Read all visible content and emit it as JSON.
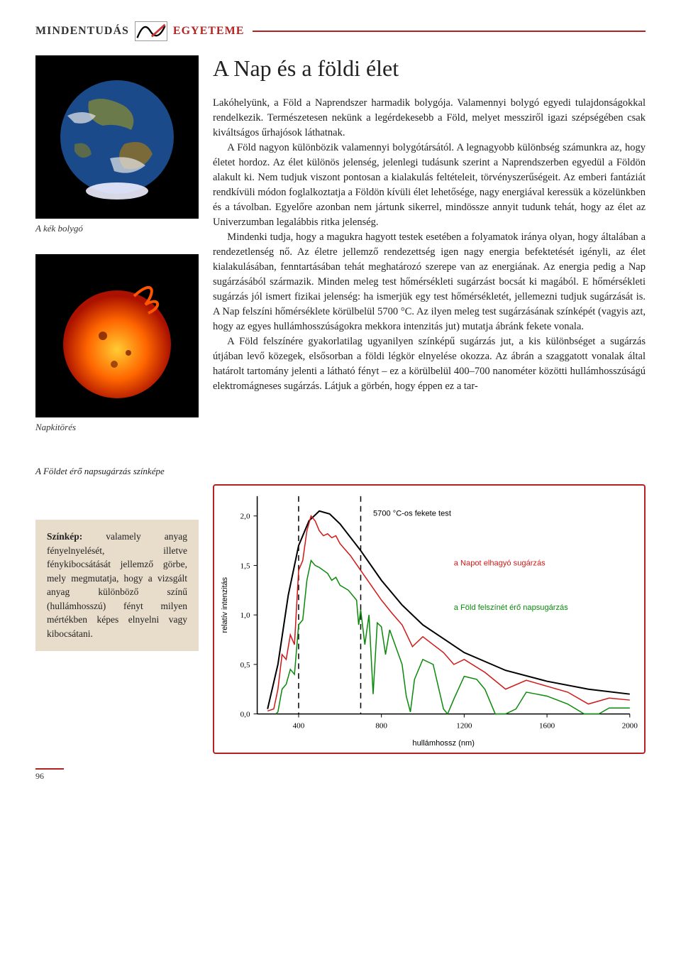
{
  "header": {
    "left": "Mindentudás",
    "right": "Egyeteme"
  },
  "title": "A Nap és a földi élet",
  "figures": [
    {
      "caption": "A kék bolygó",
      "kind": "earth"
    },
    {
      "caption": "Napkitörés",
      "kind": "sun"
    }
  ],
  "paragraphs": [
    "Lakóhelyünk, a Föld a Naprendszer harmadik bolygója. Valamennyi bolygó egyedi tulajdonságokkal rendelkezik. Természetesen nekünk a legérdekesebb a Föld, melyet messziről igazi szépségében csak kiváltságos űrhajósok láthatnak.",
    "A Föld nagyon különbözik valamennyi bolygótársától. A legnagyobb különbség számunkra az, hogy életet hordoz. Az élet különös jelenség, jelenlegi tudásunk szerint a Naprendszerben egyedül a Földön alakult ki. Nem tudjuk viszont pontosan a kialakulás feltételeit, törvényszerűségeit. Az emberi fantáziát rendkívüli módon foglalkoztatja a Földön kívüli élet lehetősége, nagy energiával keressük a közelünkben és a távolban. Egyelőre azonban nem jártunk sikerrel, mindössze annyit tudunk tehát, hogy az élet az Univerzumban legalábbis ritka jelenség.",
    "Mindenki tudja, hogy a magukra hagyott testek esetében a folyamatok iránya olyan, hogy általában a rendezetlenség nő. Az életre jellemző rendezettség igen nagy energia befektetését igényli, az élet kialakulásában, fenntartásában tehát meghatározó szerepe van az energiának. Az energia pedig a Nap sugárzásából származik. Minden meleg test hőmérsékleti sugárzást bocsát ki magából. E hőmérsékleti sugárzás jól ismert fizikai jelenség: ha ismerjük egy test hőmérsékletét, jellemezni tudjuk sugárzását is. A Nap felszíni hőmérséklete körülbelül 5700 °C. Az ilyen meleg test sugárzásának színképét (vagyis azt, hogy az egyes hullámhosszúságokra mekkora intenzitás jut) mutatja ábránk fekete vonala.",
    "A Föld felszínére gyakorlatilag ugyanilyen színképű sugárzás jut, a kis különbséget a sugárzás útjában levő közegek, elsősorban a földi légkör elnyelése okozza. Az ábrán a szaggatott vonalak által határolt tartomány jelenti a látható fényt – ez a körülbelül 400–700 nanométer közötti hullámhosszúságú elektromágneses sugárzás. Látjuk a görbén, hogy éppen ez a tar-"
  ],
  "chart_caption": "A Földet érő napsugárzás színképe",
  "definition": {
    "term": "Színkép:",
    "text": "valamely anyag fényelnyelését, illetve fénykibocsátását jellemző görbe, mely megmutatja, hogy a vizsgált anyag különböző színű (hullámhosszú) fényt milyen mértékben képes elnyelni vagy kibocsátani."
  },
  "chart": {
    "type": "line",
    "xlabel": "hullámhossz (nm)",
    "ylabel": "relatív intenzitás",
    "xlim": [
      200,
      2000
    ],
    "ylim": [
      0,
      2.2
    ],
    "xticks": [
      400,
      800,
      1200,
      1600,
      2000
    ],
    "yticks": [
      0.0,
      0.5,
      1.0,
      1.5,
      2.0
    ],
    "ytick_labels": [
      "0,0",
      "0,5",
      "1,0",
      "1,5",
      "2,0"
    ],
    "visible_band": [
      400,
      700
    ],
    "background_color": "#ffffff",
    "axis_color": "#000000",
    "dash_color": "#000000",
    "label_fontsize": 11,
    "tick_fontsize": 11,
    "series": [
      {
        "name": "5700 °C-os fekete test",
        "color": "#000000",
        "linewidth": 2,
        "points": [
          [
            250,
            0.05
          ],
          [
            300,
            0.5
          ],
          [
            350,
            1.2
          ],
          [
            400,
            1.7
          ],
          [
            450,
            1.95
          ],
          [
            500,
            2.05
          ],
          [
            550,
            2.02
          ],
          [
            600,
            1.92
          ],
          [
            700,
            1.65
          ],
          [
            800,
            1.35
          ],
          [
            900,
            1.1
          ],
          [
            1000,
            0.9
          ],
          [
            1200,
            0.62
          ],
          [
            1400,
            0.44
          ],
          [
            1600,
            0.33
          ],
          [
            1800,
            0.25
          ],
          [
            2000,
            0.2
          ]
        ]
      },
      {
        "name": "a Napot elhagyó sugárzás",
        "color": "#d01818",
        "linewidth": 1.5,
        "points": [
          [
            250,
            0.03
          ],
          [
            280,
            0.05
          ],
          [
            300,
            0.25
          ],
          [
            320,
            0.6
          ],
          [
            340,
            0.55
          ],
          [
            360,
            0.8
          ],
          [
            380,
            0.7
          ],
          [
            400,
            1.45
          ],
          [
            420,
            1.55
          ],
          [
            440,
            1.85
          ],
          [
            460,
            2.0
          ],
          [
            480,
            1.95
          ],
          [
            500,
            1.85
          ],
          [
            520,
            1.8
          ],
          [
            540,
            1.82
          ],
          [
            560,
            1.78
          ],
          [
            580,
            1.8
          ],
          [
            600,
            1.72
          ],
          [
            650,
            1.6
          ],
          [
            700,
            1.45
          ],
          [
            750,
            1.3
          ],
          [
            800,
            1.15
          ],
          [
            850,
            1.02
          ],
          [
            900,
            0.9
          ],
          [
            950,
            0.68
          ],
          [
            1000,
            0.78
          ],
          [
            1100,
            0.62
          ],
          [
            1150,
            0.5
          ],
          [
            1200,
            0.55
          ],
          [
            1300,
            0.42
          ],
          [
            1400,
            0.25
          ],
          [
            1500,
            0.34
          ],
          [
            1600,
            0.28
          ],
          [
            1700,
            0.22
          ],
          [
            1800,
            0.1
          ],
          [
            1900,
            0.16
          ],
          [
            2000,
            0.14
          ]
        ]
      },
      {
        "name": "a Föld felszínét érő napsugárzás",
        "color": "#0a8a0a",
        "linewidth": 1.5,
        "points": [
          [
            290,
            0.0
          ],
          [
            300,
            0.02
          ],
          [
            320,
            0.25
          ],
          [
            340,
            0.3
          ],
          [
            360,
            0.45
          ],
          [
            380,
            0.4
          ],
          [
            400,
            0.9
          ],
          [
            420,
            0.95
          ],
          [
            440,
            1.35
          ],
          [
            460,
            1.55
          ],
          [
            480,
            1.5
          ],
          [
            500,
            1.48
          ],
          [
            520,
            1.45
          ],
          [
            540,
            1.42
          ],
          [
            560,
            1.35
          ],
          [
            580,
            1.38
          ],
          [
            600,
            1.3
          ],
          [
            640,
            1.25
          ],
          [
            680,
            1.15
          ],
          [
            690,
            0.9
          ],
          [
            700,
            1.05
          ],
          [
            720,
            0.7
          ],
          [
            740,
            1.0
          ],
          [
            760,
            0.2
          ],
          [
            780,
            0.92
          ],
          [
            800,
            0.88
          ],
          [
            820,
            0.6
          ],
          [
            840,
            0.85
          ],
          [
            900,
            0.5
          ],
          [
            920,
            0.18
          ],
          [
            940,
            0.02
          ],
          [
            960,
            0.35
          ],
          [
            1000,
            0.55
          ],
          [
            1050,
            0.5
          ],
          [
            1100,
            0.05
          ],
          [
            1120,
            0.0
          ],
          [
            1150,
            0.15
          ],
          [
            1200,
            0.38
          ],
          [
            1260,
            0.35
          ],
          [
            1300,
            0.25
          ],
          [
            1350,
            0.0
          ],
          [
            1400,
            0.0
          ],
          [
            1450,
            0.05
          ],
          [
            1500,
            0.22
          ],
          [
            1550,
            0.2
          ],
          [
            1600,
            0.18
          ],
          [
            1650,
            0.14
          ],
          [
            1700,
            0.1
          ],
          [
            1780,
            0.0
          ],
          [
            1850,
            0.0
          ],
          [
            1900,
            0.06
          ],
          [
            2000,
            0.06
          ]
        ]
      }
    ],
    "legend_positions": {
      "5700 °C-os fekete test": [
        760,
        2.0
      ],
      "a Napot elhagyó sugárzás": [
        1150,
        1.5
      ],
      "a Föld felszínét érő napsugárzás": [
        1150,
        1.05
      ]
    }
  },
  "page_number": "96",
  "colors": {
    "accent": "#b22222",
    "def_bg": "#e8dccb"
  }
}
